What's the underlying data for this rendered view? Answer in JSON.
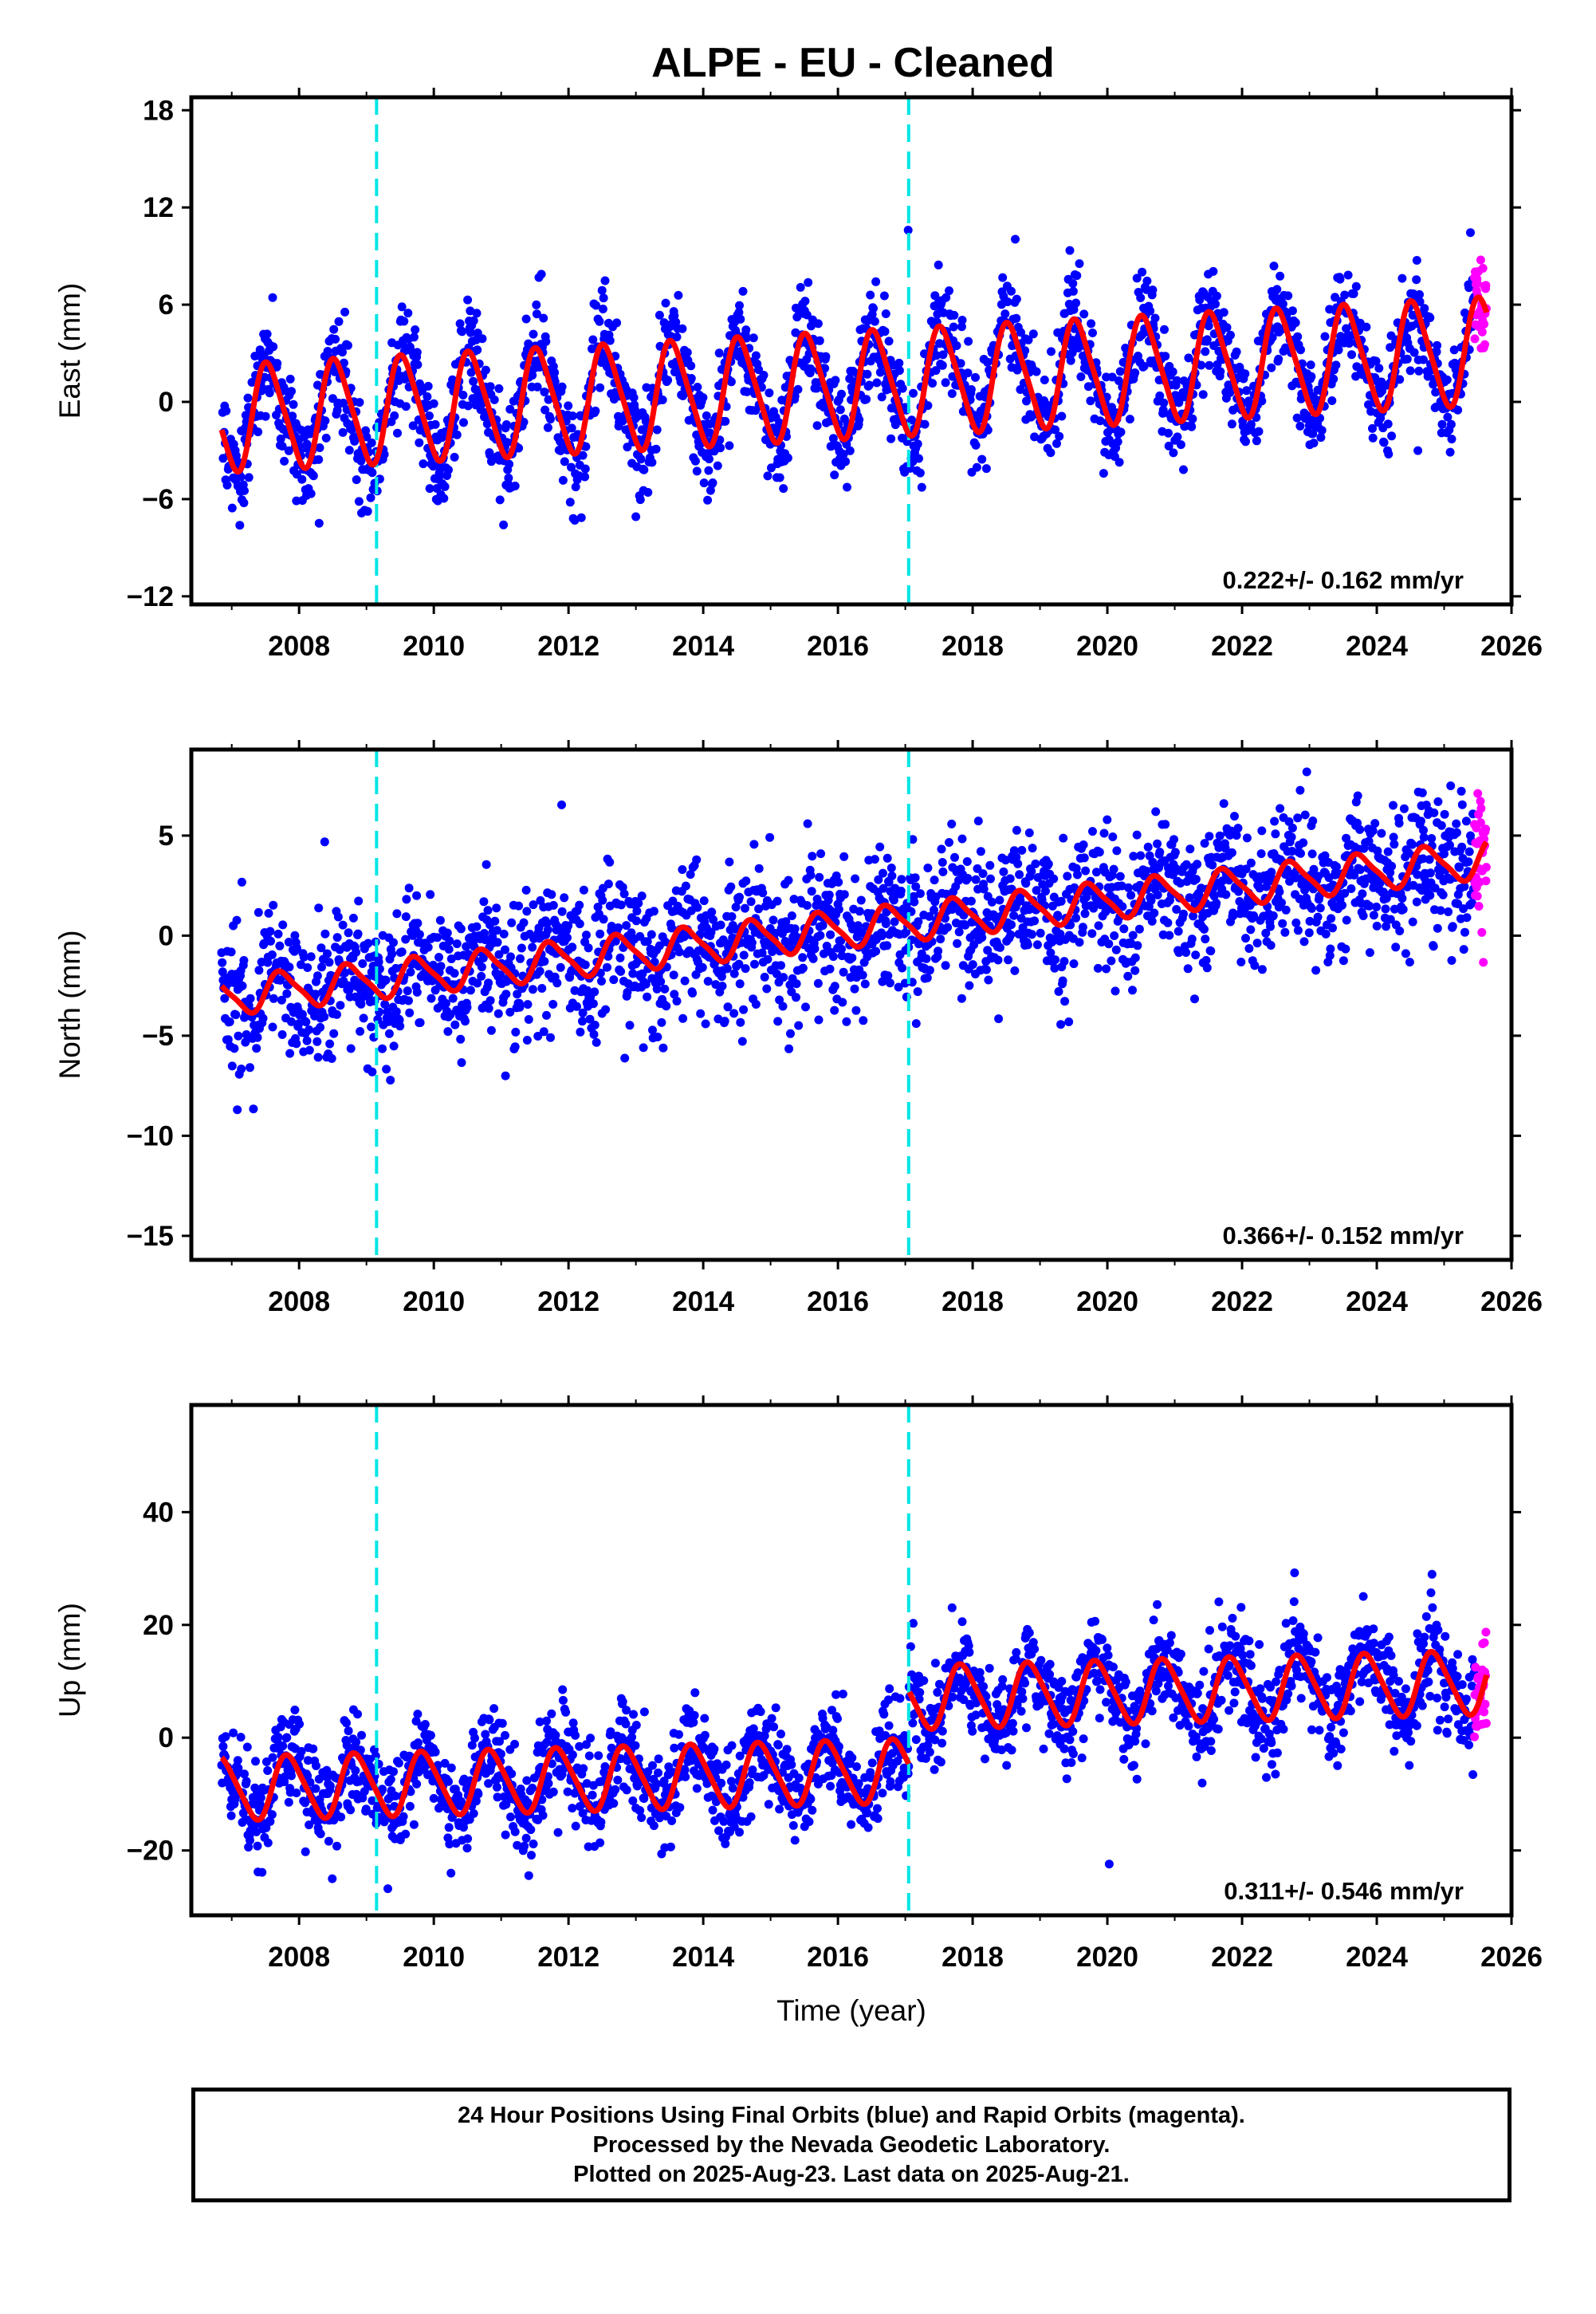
{
  "figure": {
    "title": "ALPE  - EU - Cleaned",
    "footer_lines": [
      "24 Hour Positions Using Final Orbits (blue) and Rapid Orbits (magenta).",
      "Processed by the Nevada Geodetic Laboratory.",
      "Plotted on 2025-Aug-23. Last data on 2025-Aug-21."
    ]
  },
  "colors": {
    "final_orbits": "#0000ff",
    "rapid_orbits": "#ff00ff",
    "model_fit": "#ff0000",
    "offset_lines": "#00e5e5"
  },
  "chart_data": [
    {
      "type": "scatter",
      "component": "east",
      "ylabel": "East (mm)",
      "xlabel": "",
      "xlim": [
        2006.4,
        2026.0
      ],
      "ylim": [
        -12.5,
        18.8
      ],
      "xticks": [
        2008,
        2010,
        2012,
        2014,
        2016,
        2018,
        2020,
        2022,
        2024,
        2026
      ],
      "yticks": [
        -12,
        -6,
        0,
        6,
        12,
        18
      ],
      "offsets": [
        2009.15,
        2017.05
      ],
      "velocity_label": "0.222+/- 0.162 mm/yr",
      "model": {
        "rate": 0.222,
        "intercept": -1.0,
        "annual_amp": 3.2,
        "annual_phase": 2007.3,
        "semi_amp": 0.5,
        "noise": 1.6
      },
      "series": [
        {
          "name": "Final Orbits (blue)",
          "color": "#0000ff"
        },
        {
          "name": "Rapid Orbits (magenta)",
          "color": "#ff00ff",
          "x_start": 2025.45,
          "x_end": 2025.63
        }
      ]
    },
    {
      "type": "scatter",
      "component": "north",
      "ylabel": "North (mm)",
      "xlabel": "",
      "xlim": [
        2006.4,
        2026.0
      ],
      "ylim": [
        -16.2,
        9.3
      ],
      "xticks": [
        2008,
        2010,
        2012,
        2014,
        2016,
        2018,
        2020,
        2022,
        2024,
        2026
      ],
      "yticks": [
        -15,
        -10,
        -5,
        0,
        5
      ],
      "offsets": [
        2009.15,
        2017.05
      ],
      "velocity_label": "0.366+/- 0.152 mm/yr",
      "model": {
        "rate": 0.366,
        "intercept": -3.0,
        "annual_amp": 0.9,
        "annual_phase": 2007.5,
        "semi_amp": 0.2,
        "noise": 1.7
      },
      "series": [
        {
          "name": "Final Orbits (blue)",
          "color": "#0000ff"
        },
        {
          "name": "Rapid Orbits (magenta)",
          "color": "#ff00ff",
          "x_start": 2025.45,
          "x_end": 2025.63
        }
      ]
    },
    {
      "type": "scatter",
      "component": "up",
      "ylabel": "Up (mm)",
      "xlabel": "Time (year)",
      "xlim": [
        2006.4,
        2026.0
      ],
      "ylim": [
        -31.5,
        59
      ],
      "xticks": [
        2008,
        2010,
        2012,
        2014,
        2016,
        2018,
        2020,
        2022,
        2024,
        2026
      ],
      "yticks": [
        -20,
        0,
        20,
        40
      ],
      "offsets": [
        2009.15,
        2017.05
      ],
      "velocity_label": "0.311+/- 0.546 mm/yr",
      "model": {
        "rate": 0.311,
        "intercept": -9.0,
        "annual_amp": 5.5,
        "annual_phase": 2007.6,
        "semi_amp": 0.8,
        "step_at": 2017.05,
        "step": 13.0,
        "noise": 4.2
      },
      "series": [
        {
          "name": "Final Orbits (blue)",
          "color": "#0000ff"
        },
        {
          "name": "Rapid Orbits (magenta)",
          "color": "#ff00ff",
          "x_start": 2025.45,
          "x_end": 2025.63
        }
      ]
    }
  ]
}
